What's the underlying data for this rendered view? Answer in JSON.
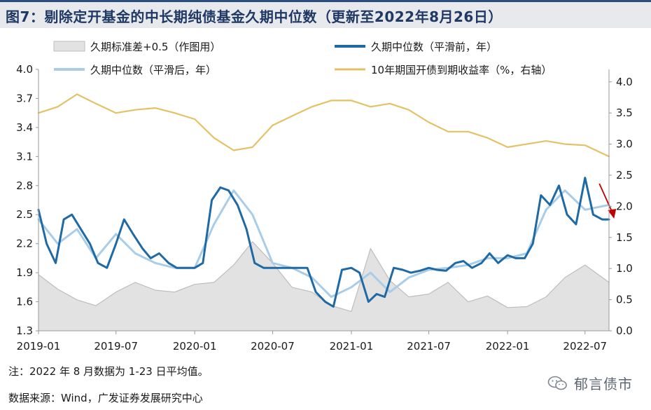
{
  "title": "图7：剔除定开基金的中长期纯债基金久期中位数（更新至2022年8月26日）",
  "footnote": "注：2022 年 8 月数据为 1-23 日平均值。",
  "source": "数据来源：Wind，广发证券发展研究中心",
  "watermark": "郁言债市",
  "colors": {
    "background": "#ffffff",
    "title_bar": "#e7e9ec",
    "title_text": "#1f3864",
    "dark_blue": "#1f6aa5",
    "light_blue": "#a9cce8",
    "gold": "#e3c266",
    "gray_area": "#e2e2e2",
    "gray_line": "#bdbdbd",
    "arrow": "#c00000"
  },
  "chart_data": {
    "type": "line",
    "title": "",
    "xlabel": "",
    "ylabel": "",
    "y2label": "",
    "x_range": [
      "2019-01-01",
      "2022-08-26"
    ],
    "x_ticks": [
      "2019-01",
      "2019-07",
      "2020-01",
      "2020-07",
      "2021-01",
      "2021-07",
      "2022-01",
      "2022-07"
    ],
    "ylim": [
      1.3,
      4.0
    ],
    "y_ticks": [
      1.3,
      1.6,
      1.9,
      2.2,
      2.5,
      2.8,
      3.1,
      3.4,
      3.7,
      4.0
    ],
    "y2lim": [
      0.0,
      4.2
    ],
    "y2_ticks": [
      "0.0",
      "0.5",
      "1.0",
      "1.5",
      "2.0",
      "2.5",
      "3.0",
      "3.5",
      "4.0"
    ],
    "legend_placement": "top",
    "grid": false,
    "annotation": "downward red arrow at the end of the duration series (Aug 2022)",
    "series": [
      {
        "name": "久期标准差+0.5（作图用）",
        "style": "area",
        "axis": "left",
        "x": [
          "2019-01-01",
          "2019-02-15",
          "2019-04-01",
          "2019-05-15",
          "2019-07-01",
          "2019-08-15",
          "2019-10-01",
          "2019-11-15",
          "2020-01-01",
          "2020-02-15",
          "2020-04-01",
          "2020-05-15",
          "2020-07-01",
          "2020-08-15",
          "2020-10-01",
          "2020-11-15",
          "2021-01-01",
          "2021-02-15",
          "2021-04-01",
          "2021-05-15",
          "2021-07-01",
          "2021-08-15",
          "2021-10-01",
          "2021-11-15",
          "2022-01-01",
          "2022-02-15",
          "2022-04-01",
          "2022-05-15",
          "2022-07-01",
          "2022-08-26"
        ],
        "values": [
          1.88,
          1.73,
          1.62,
          1.56,
          1.7,
          1.8,
          1.72,
          1.7,
          1.78,
          1.8,
          1.98,
          2.22,
          2.0,
          1.75,
          1.7,
          1.56,
          1.5,
          2.15,
          1.82,
          1.65,
          1.68,
          1.8,
          1.6,
          1.66,
          1.54,
          1.55,
          1.65,
          1.85,
          1.98,
          1.8
        ]
      },
      {
        "name": "久期中位数（平滑前，年）",
        "style": "line",
        "axis": "left",
        "x": [
          "2019-01-01",
          "2019-01-20",
          "2019-02-10",
          "2019-03-01",
          "2019-03-20",
          "2019-04-10",
          "2019-05-01",
          "2019-05-20",
          "2019-06-10",
          "2019-07-01",
          "2019-07-20",
          "2019-08-10",
          "2019-09-01",
          "2019-09-20",
          "2019-10-10",
          "2019-11-01",
          "2019-11-20",
          "2019-12-10",
          "2020-01-01",
          "2020-01-20",
          "2020-02-10",
          "2020-03-01",
          "2020-03-20",
          "2020-04-10",
          "2020-05-01",
          "2020-05-20",
          "2020-06-10",
          "2020-07-01",
          "2020-07-20",
          "2020-08-10",
          "2020-09-01",
          "2020-09-20",
          "2020-10-10",
          "2020-11-01",
          "2020-11-20",
          "2020-12-10",
          "2021-01-01",
          "2021-01-20",
          "2021-02-10",
          "2021-03-01",
          "2021-03-20",
          "2021-04-10",
          "2021-05-01",
          "2021-05-20",
          "2021-06-10",
          "2021-07-01",
          "2021-07-20",
          "2021-08-10",
          "2021-09-01",
          "2021-09-20",
          "2021-10-10",
          "2021-11-01",
          "2021-11-20",
          "2021-12-10",
          "2022-01-01",
          "2022-01-20",
          "2022-02-10",
          "2022-03-01",
          "2022-03-20",
          "2022-04-10",
          "2022-05-01",
          "2022-05-20",
          "2022-06-10",
          "2022-07-01",
          "2022-07-20",
          "2022-08-10",
          "2022-08-26"
        ],
        "values": [
          2.55,
          2.2,
          2.0,
          2.45,
          2.5,
          2.35,
          2.2,
          2.0,
          1.95,
          2.2,
          2.45,
          2.3,
          2.15,
          2.05,
          2.1,
          2.0,
          1.95,
          1.95,
          1.95,
          2.0,
          2.65,
          2.78,
          2.75,
          2.6,
          2.35,
          2.0,
          1.95,
          1.95,
          1.95,
          1.95,
          1.95,
          1.95,
          1.7,
          1.6,
          1.55,
          1.93,
          1.95,
          1.9,
          1.6,
          1.68,
          1.65,
          1.95,
          1.93,
          1.9,
          1.92,
          1.95,
          1.93,
          1.92,
          2.0,
          2.02,
          1.95,
          2.0,
          2.1,
          2.0,
          2.08,
          2.05,
          2.05,
          2.2,
          2.7,
          2.6,
          2.8,
          2.5,
          2.4,
          2.88,
          2.5,
          2.45,
          2.45
        ]
      },
      {
        "name": "久期中位数（平滑后，年）",
        "style": "line",
        "axis": "left",
        "x": [
          "2019-01-01",
          "2019-02-15",
          "2019-04-01",
          "2019-05-15",
          "2019-07-01",
          "2019-08-15",
          "2019-10-01",
          "2019-11-15",
          "2020-01-01",
          "2020-02-15",
          "2020-04-01",
          "2020-05-15",
          "2020-07-01",
          "2020-08-15",
          "2020-10-01",
          "2020-11-15",
          "2021-01-01",
          "2021-02-15",
          "2021-04-01",
          "2021-05-15",
          "2021-07-01",
          "2021-08-15",
          "2021-10-01",
          "2021-11-15",
          "2022-01-01",
          "2022-02-15",
          "2022-04-01",
          "2022-05-15",
          "2022-07-01",
          "2022-08-26"
        ],
        "values": [
          2.45,
          2.2,
          2.35,
          2.05,
          2.3,
          2.1,
          2.0,
          1.95,
          1.95,
          2.4,
          2.75,
          2.5,
          2.0,
          1.95,
          1.85,
          1.65,
          1.75,
          1.9,
          1.7,
          1.85,
          1.93,
          1.95,
          1.98,
          2.05,
          2.05,
          2.1,
          2.55,
          2.75,
          2.55,
          2.6
        ]
      },
      {
        "name": "10年期国开债到期收益率（%，右轴）",
        "style": "line",
        "axis": "right",
        "x": [
          "2019-01-01",
          "2019-02-15",
          "2019-04-01",
          "2019-05-15",
          "2019-07-01",
          "2019-08-15",
          "2019-10-01",
          "2019-11-15",
          "2020-01-01",
          "2020-02-15",
          "2020-04-01",
          "2020-05-15",
          "2020-07-01",
          "2020-08-15",
          "2020-10-01",
          "2020-11-15",
          "2021-01-01",
          "2021-02-15",
          "2021-04-01",
          "2021-05-15",
          "2021-07-01",
          "2021-08-15",
          "2021-10-01",
          "2021-11-15",
          "2022-01-01",
          "2022-02-15",
          "2022-04-01",
          "2022-05-15",
          "2022-07-01",
          "2022-08-26"
        ],
        "values": [
          3.5,
          3.6,
          3.8,
          3.65,
          3.5,
          3.55,
          3.58,
          3.5,
          3.4,
          3.1,
          2.9,
          2.95,
          3.3,
          3.45,
          3.6,
          3.7,
          3.7,
          3.6,
          3.65,
          3.55,
          3.35,
          3.2,
          3.2,
          3.1,
          2.95,
          3.0,
          3.05,
          3.0,
          2.98,
          2.8
        ]
      }
    ]
  }
}
